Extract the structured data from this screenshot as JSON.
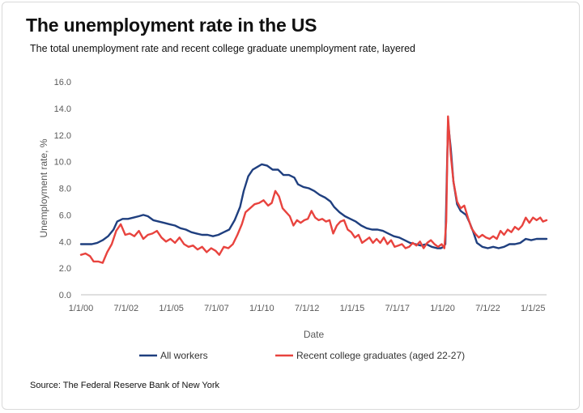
{
  "header": {
    "title": "The unemployment rate in the US",
    "subtitle": "The total unemployment rate and recent college graduate unemployment rate, layered"
  },
  "footer": {
    "source": "Source: The Federal Reserve Bank of New York"
  },
  "colors": {
    "all_workers": "#1f3f7f",
    "grads": "#e8433e",
    "axis": "#bfbfbf",
    "text": "#595959"
  },
  "chart_data": {
    "type": "line",
    "xlabel": "Date",
    "ylabel": "Unemployment rate, %",
    "ylim": [
      0,
      16
    ],
    "yticks": [
      "0.0",
      "2.0",
      "4.0",
      "6.0",
      "8.0",
      "10.0",
      "12.0",
      "14.0",
      "16.0"
    ],
    "xlim": [
      2000.0,
      2025.75
    ],
    "xticks": [
      {
        "label": "1/1/00",
        "x": 2000.0
      },
      {
        "label": "7/1/02",
        "x": 2002.5
      },
      {
        "label": "1/1/05",
        "x": 2005.0
      },
      {
        "label": "7/1/07",
        "x": 2007.5
      },
      {
        "label": "1/1/10",
        "x": 2010.0
      },
      {
        "label": "7/1/12",
        "x": 2012.5
      },
      {
        "label": "1/1/15",
        "x": 2015.0
      },
      {
        "label": "7/1/17",
        "x": 2017.5
      },
      {
        "label": "1/1/20",
        "x": 2020.0
      },
      {
        "label": "7/1/22",
        "x": 2022.5
      },
      {
        "label": "1/1/25",
        "x": 2025.0
      }
    ],
    "grid": false,
    "legend": "bottom",
    "series": [
      {
        "name": "All workers",
        "color": "#1f3f7f",
        "points": [
          [
            2000.0,
            3.8
          ],
          [
            2000.3,
            3.8
          ],
          [
            2000.6,
            3.8
          ],
          [
            2000.9,
            3.9
          ],
          [
            2001.2,
            4.1
          ],
          [
            2001.5,
            4.4
          ],
          [
            2001.8,
            4.9
          ],
          [
            2002.0,
            5.5
          ],
          [
            2002.3,
            5.7
          ],
          [
            2002.6,
            5.7
          ],
          [
            2002.9,
            5.8
          ],
          [
            2003.2,
            5.9
          ],
          [
            2003.45,
            6.0
          ],
          [
            2003.7,
            5.9
          ],
          [
            2004.0,
            5.6
          ],
          [
            2004.3,
            5.5
          ],
          [
            2004.6,
            5.4
          ],
          [
            2004.9,
            5.3
          ],
          [
            2005.2,
            5.2
          ],
          [
            2005.5,
            5.0
          ],
          [
            2005.8,
            4.9
          ],
          [
            2006.1,
            4.7
          ],
          [
            2006.4,
            4.6
          ],
          [
            2006.7,
            4.5
          ],
          [
            2007.0,
            4.5
          ],
          [
            2007.3,
            4.4
          ],
          [
            2007.6,
            4.5
          ],
          [
            2007.9,
            4.7
          ],
          [
            2008.2,
            4.9
          ],
          [
            2008.5,
            5.6
          ],
          [
            2008.8,
            6.6
          ],
          [
            2009.0,
            7.8
          ],
          [
            2009.25,
            8.9
          ],
          [
            2009.5,
            9.4
          ],
          [
            2009.75,
            9.6
          ],
          [
            2010.0,
            9.8
          ],
          [
            2010.3,
            9.7
          ],
          [
            2010.6,
            9.4
          ],
          [
            2010.9,
            9.4
          ],
          [
            2011.2,
            9.0
          ],
          [
            2011.5,
            9.0
          ],
          [
            2011.8,
            8.8
          ],
          [
            2012.0,
            8.3
          ],
          [
            2012.3,
            8.1
          ],
          [
            2012.6,
            8.0
          ],
          [
            2012.9,
            7.8
          ],
          [
            2013.2,
            7.5
          ],
          [
            2013.5,
            7.3
          ],
          [
            2013.8,
            7.0
          ],
          [
            2014.0,
            6.6
          ],
          [
            2014.3,
            6.2
          ],
          [
            2014.6,
            5.9
          ],
          [
            2014.9,
            5.7
          ],
          [
            2015.2,
            5.5
          ],
          [
            2015.5,
            5.2
          ],
          [
            2015.8,
            5.0
          ],
          [
            2016.1,
            4.9
          ],
          [
            2016.4,
            4.9
          ],
          [
            2016.7,
            4.8
          ],
          [
            2017.0,
            4.6
          ],
          [
            2017.3,
            4.4
          ],
          [
            2017.6,
            4.3
          ],
          [
            2017.9,
            4.1
          ],
          [
            2018.2,
            3.9
          ],
          [
            2018.5,
            3.8
          ],
          [
            2018.8,
            3.7
          ],
          [
            2019.1,
            3.8
          ],
          [
            2019.4,
            3.6
          ],
          [
            2019.7,
            3.5
          ],
          [
            2019.9,
            3.5
          ],
          [
            2020.05,
            3.6
          ],
          [
            2020.15,
            3.8
          ],
          [
            2020.3,
            13.0
          ],
          [
            2020.45,
            11.0
          ],
          [
            2020.6,
            8.5
          ],
          [
            2020.8,
            6.8
          ],
          [
            2021.0,
            6.3
          ],
          [
            2021.3,
            6.0
          ],
          [
            2021.5,
            5.4
          ],
          [
            2021.7,
            4.7
          ],
          [
            2021.9,
            3.9
          ],
          [
            2022.2,
            3.6
          ],
          [
            2022.5,
            3.5
          ],
          [
            2022.8,
            3.6
          ],
          [
            2023.1,
            3.5
          ],
          [
            2023.4,
            3.6
          ],
          [
            2023.7,
            3.8
          ],
          [
            2024.0,
            3.8
          ],
          [
            2024.3,
            3.9
          ],
          [
            2024.6,
            4.2
          ],
          [
            2024.9,
            4.1
          ],
          [
            2025.2,
            4.2
          ],
          [
            2025.5,
            4.2
          ],
          [
            2025.75,
            4.2
          ]
        ]
      },
      {
        "name": "Recent college graduates (aged 22-27)",
        "color": "#e8433e",
        "points": [
          [
            2000.0,
            3.0
          ],
          [
            2000.25,
            3.1
          ],
          [
            2000.5,
            2.9
          ],
          [
            2000.7,
            2.5
          ],
          [
            2000.95,
            2.5
          ],
          [
            2001.2,
            2.4
          ],
          [
            2001.45,
            3.2
          ],
          [
            2001.7,
            3.8
          ],
          [
            2001.95,
            4.8
          ],
          [
            2002.2,
            5.3
          ],
          [
            2002.45,
            4.5
          ],
          [
            2002.7,
            4.6
          ],
          [
            2002.95,
            4.4
          ],
          [
            2003.2,
            4.8
          ],
          [
            2003.45,
            4.2
          ],
          [
            2003.7,
            4.5
          ],
          [
            2003.95,
            4.6
          ],
          [
            2004.2,
            4.8
          ],
          [
            2004.45,
            4.3
          ],
          [
            2004.7,
            4.0
          ],
          [
            2004.95,
            4.2
          ],
          [
            2005.2,
            3.9
          ],
          [
            2005.45,
            4.3
          ],
          [
            2005.7,
            3.8
          ],
          [
            2005.95,
            3.6
          ],
          [
            2006.2,
            3.7
          ],
          [
            2006.45,
            3.4
          ],
          [
            2006.7,
            3.6
          ],
          [
            2006.95,
            3.2
          ],
          [
            2007.2,
            3.5
          ],
          [
            2007.45,
            3.3
          ],
          [
            2007.65,
            3.0
          ],
          [
            2007.9,
            3.6
          ],
          [
            2008.15,
            3.5
          ],
          [
            2008.4,
            3.8
          ],
          [
            2008.65,
            4.5
          ],
          [
            2008.9,
            5.3
          ],
          [
            2009.1,
            6.2
          ],
          [
            2009.35,
            6.5
          ],
          [
            2009.6,
            6.8
          ],
          [
            2009.85,
            6.9
          ],
          [
            2010.1,
            7.1
          ],
          [
            2010.35,
            6.7
          ],
          [
            2010.55,
            6.9
          ],
          [
            2010.75,
            7.8
          ],
          [
            2010.95,
            7.4
          ],
          [
            2011.15,
            6.5
          ],
          [
            2011.35,
            6.2
          ],
          [
            2011.55,
            5.9
          ],
          [
            2011.75,
            5.2
          ],
          [
            2011.95,
            5.6
          ],
          [
            2012.15,
            5.4
          ],
          [
            2012.35,
            5.6
          ],
          [
            2012.55,
            5.7
          ],
          [
            2012.75,
            6.3
          ],
          [
            2012.95,
            5.8
          ],
          [
            2013.15,
            5.6
          ],
          [
            2013.35,
            5.7
          ],
          [
            2013.55,
            5.5
          ],
          [
            2013.75,
            5.6
          ],
          [
            2013.95,
            4.6
          ],
          [
            2014.15,
            5.2
          ],
          [
            2014.35,
            5.5
          ],
          [
            2014.55,
            5.6
          ],
          [
            2014.75,
            4.9
          ],
          [
            2014.95,
            4.7
          ],
          [
            2015.15,
            4.3
          ],
          [
            2015.35,
            4.5
          ],
          [
            2015.55,
            3.9
          ],
          [
            2015.75,
            4.1
          ],
          [
            2015.95,
            4.3
          ],
          [
            2016.15,
            3.9
          ],
          [
            2016.35,
            4.2
          ],
          [
            2016.55,
            3.9
          ],
          [
            2016.75,
            4.3
          ],
          [
            2016.95,
            3.8
          ],
          [
            2017.15,
            4.1
          ],
          [
            2017.35,
            3.6
          ],
          [
            2017.55,
            3.7
          ],
          [
            2017.75,
            3.8
          ],
          [
            2017.95,
            3.5
          ],
          [
            2018.15,
            3.6
          ],
          [
            2018.35,
            3.9
          ],
          [
            2018.55,
            3.7
          ],
          [
            2018.75,
            4.0
          ],
          [
            2018.95,
            3.5
          ],
          [
            2019.15,
            3.9
          ],
          [
            2019.35,
            4.1
          ],
          [
            2019.55,
            3.8
          ],
          [
            2019.75,
            3.6
          ],
          [
            2019.95,
            3.8
          ],
          [
            2020.1,
            3.5
          ],
          [
            2020.2,
            5.5
          ],
          [
            2020.3,
            13.4
          ],
          [
            2020.45,
            10.5
          ],
          [
            2020.6,
            8.5
          ],
          [
            2020.8,
            7.0
          ],
          [
            2021.0,
            6.5
          ],
          [
            2021.2,
            6.7
          ],
          [
            2021.4,
            5.8
          ],
          [
            2021.6,
            5.0
          ],
          [
            2021.8,
            4.6
          ],
          [
            2022.0,
            4.3
          ],
          [
            2022.2,
            4.5
          ],
          [
            2022.4,
            4.3
          ],
          [
            2022.6,
            4.2
          ],
          [
            2022.8,
            4.4
          ],
          [
            2023.0,
            4.2
          ],
          [
            2023.2,
            4.8
          ],
          [
            2023.4,
            4.5
          ],
          [
            2023.6,
            4.9
          ],
          [
            2023.8,
            4.7
          ],
          [
            2024.0,
            5.1
          ],
          [
            2024.2,
            4.9
          ],
          [
            2024.4,
            5.2
          ],
          [
            2024.6,
            5.8
          ],
          [
            2024.8,
            5.4
          ],
          [
            2025.0,
            5.8
          ],
          [
            2025.2,
            5.6
          ],
          [
            2025.4,
            5.8
          ],
          [
            2025.55,
            5.5
          ],
          [
            2025.75,
            5.6
          ]
        ]
      }
    ]
  }
}
